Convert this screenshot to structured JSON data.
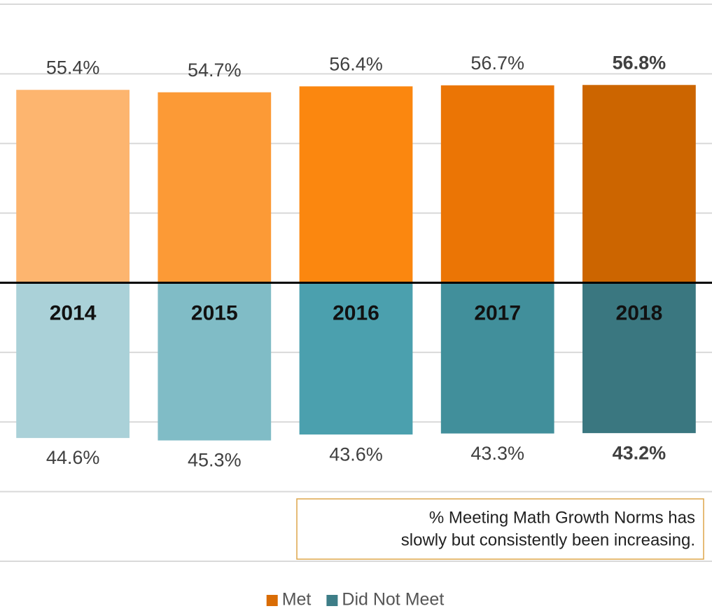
{
  "chart_data": {
    "type": "diverging_bar",
    "categories": [
      "2014",
      "2015",
      "2016",
      "2017",
      "2018"
    ],
    "series": [
      {
        "name": "Met",
        "color": "#D96C05",
        "direction": "up",
        "colors": [
          "#FDB56F",
          "#FC9A36",
          "#FB870F",
          "#EB7505",
          "#CC6500"
        ],
        "values": [
          55.4,
          54.7,
          56.4,
          56.7,
          56.8
        ],
        "value_labels": [
          "55.4%",
          "54.7%",
          "56.4%",
          "56.7%",
          "56.8%"
        ]
      },
      {
        "name": "Did Not Meet",
        "color": "#3D7D87",
        "direction": "down",
        "colors": [
          "#AAD1D8",
          "#80BCC6",
          "#4BA0AE",
          "#418F9B",
          "#3A7780"
        ],
        "values": [
          44.6,
          45.3,
          43.6,
          43.3,
          43.2
        ],
        "value_labels": [
          "44.6%",
          "45.3%",
          "43.6%",
          "43.3%",
          "43.2%"
        ]
      }
    ],
    "ylim": [
      -80,
      80
    ],
    "yticks": [
      -80,
      -60,
      -40,
      -20,
      0,
      20,
      40,
      60,
      80
    ],
    "grid": true,
    "annotation": [
      "% Meeting Math Growth Norms has",
      "slowly but consistently been increasing."
    ],
    "legend": "bottom"
  }
}
